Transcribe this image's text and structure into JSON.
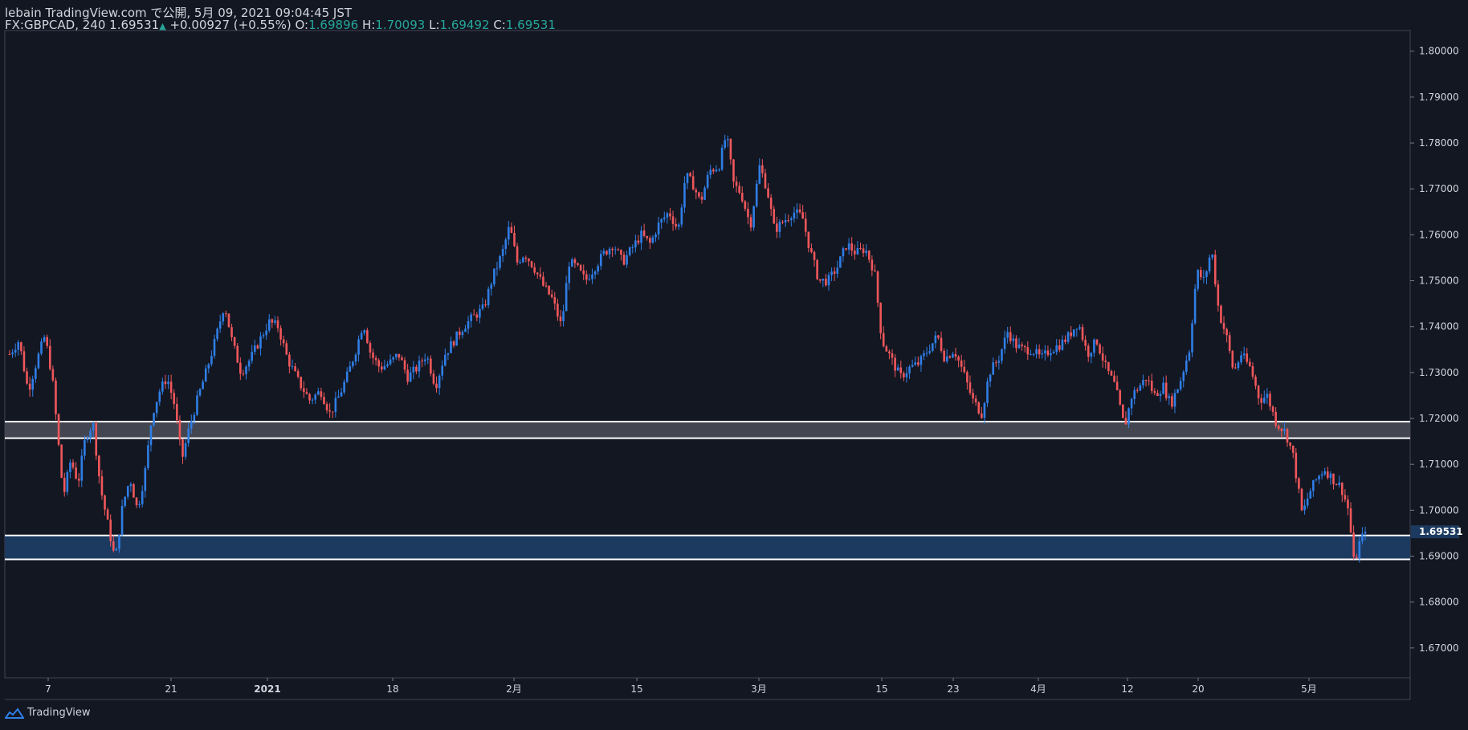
{
  "header": {
    "line1": "lebain TradingView.com で公開, 5月 09, 2021 09:04:45 JST",
    "symbol": "FX:GBPCAD, 240",
    "last": "1.69531",
    "change": "+0.00927 (+0.55%)",
    "o_label": "O:",
    "o": "1.69896",
    "h_label": "H:",
    "h": "1.70093",
    "l_label": "L:",
    "l": "1.69492",
    "c_label": "C:",
    "c": "1.69531"
  },
  "footer": {
    "brand": "TradingView"
  },
  "chart_data": {
    "type": "candlestick",
    "symbol": "FX:GBPCAD",
    "interval": "240",
    "y_ticks": [
      "1.80000",
      "1.79000",
      "1.78000",
      "1.77000",
      "1.76000",
      "1.75000",
      "1.74000",
      "1.73000",
      "1.72000",
      "1.71000",
      "1.70000",
      "1.69000",
      "1.68000",
      "1.67000"
    ],
    "ylim": [
      1.6635,
      1.8045
    ],
    "x_ticks": [
      "7",
      "21",
      "2021",
      "18",
      "2月",
      "15",
      "3月",
      "15",
      "23",
      "4月",
      "12",
      "20",
      "5月"
    ],
    "last_price_label": "1.69531",
    "zones": [
      {
        "from": 1.7157,
        "to": 1.7193,
        "fill": "#434651",
        "border": "#ffffff"
      },
      {
        "from": 1.6893,
        "to": 1.6945,
        "fill": "#1c3a60",
        "border": "#ffffff"
      }
    ],
    "up_color": "#2f7ee6",
    "down_color": "#f0575b",
    "grid": false,
    "path": [
      [
        0,
        1.734
      ],
      [
        10,
        1.737
      ],
      [
        20,
        1.726
      ],
      [
        30,
        1.733
      ],
      [
        38,
        1.738
      ],
      [
        46,
        1.729
      ],
      [
        58,
        1.703
      ],
      [
        66,
        1.711
      ],
      [
        74,
        1.706
      ],
      [
        82,
        1.716
      ],
      [
        90,
        1.719
      ],
      [
        98,
        1.705
      ],
      [
        106,
        1.697
      ],
      [
        114,
        1.689
      ],
      [
        122,
        1.701
      ],
      [
        130,
        1.707
      ],
      [
        138,
        1.7
      ],
      [
        146,
        1.708
      ],
      [
        154,
        1.721
      ],
      [
        162,
        1.726
      ],
      [
        170,
        1.729
      ],
      [
        178,
        1.723
      ],
      [
        186,
        1.711
      ],
      [
        194,
        1.718
      ],
      [
        204,
        1.725
      ],
      [
        212,
        1.73
      ],
      [
        222,
        1.737
      ],
      [
        232,
        1.745
      ],
      [
        240,
        1.737
      ],
      [
        250,
        1.73
      ],
      [
        260,
        1.733
      ],
      [
        270,
        1.737
      ],
      [
        280,
        1.741
      ],
      [
        290,
        1.74
      ],
      [
        300,
        1.733
      ],
      [
        312,
        1.728
      ],
      [
        324,
        1.724
      ],
      [
        336,
        1.726
      ],
      [
        346,
        1.721
      ],
      [
        356,
        1.725
      ],
      [
        366,
        1.73
      ],
      [
        374,
        1.735
      ],
      [
        382,
        1.741
      ],
      [
        390,
        1.734
      ],
      [
        400,
        1.731
      ],
      [
        410,
        1.732
      ],
      [
        420,
        1.734
      ],
      [
        430,
        1.729
      ],
      [
        440,
        1.731
      ],
      [
        450,
        1.734
      ],
      [
        460,
        1.727
      ],
      [
        470,
        1.734
      ],
      [
        480,
        1.737
      ],
      [
        490,
        1.74
      ],
      [
        500,
        1.742
      ],
      [
        512,
        1.744
      ],
      [
        522,
        1.751
      ],
      [
        532,
        1.756
      ],
      [
        540,
        1.762
      ],
      [
        548,
        1.754
      ],
      [
        556,
        1.756
      ],
      [
        566,
        1.753
      ],
      [
        576,
        1.749
      ],
      [
        586,
        1.746
      ],
      [
        596,
        1.74
      ],
      [
        604,
        1.754
      ],
      [
        612,
        1.753
      ],
      [
        622,
        1.75
      ],
      [
        632,
        1.753
      ],
      [
        642,
        1.756
      ],
      [
        652,
        1.758
      ],
      [
        662,
        1.754
      ],
      [
        672,
        1.757
      ],
      [
        682,
        1.76
      ],
      [
        692,
        1.758
      ],
      [
        700,
        1.762
      ],
      [
        712,
        1.765
      ],
      [
        722,
        1.761
      ],
      [
        730,
        1.773
      ],
      [
        738,
        1.771
      ],
      [
        746,
        1.767
      ],
      [
        756,
        1.774
      ],
      [
        766,
        1.775
      ],
      [
        774,
        1.782
      ],
      [
        782,
        1.771
      ],
      [
        790,
        1.769
      ],
      [
        800,
        1.762
      ],
      [
        810,
        1.775
      ],
      [
        818,
        1.77
      ],
      [
        826,
        1.761
      ],
      [
        836,
        1.763
      ],
      [
        846,
        1.765
      ],
      [
        856,
        1.764
      ],
      [
        864,
        1.757
      ],
      [
        874,
        1.75
      ],
      [
        884,
        1.75
      ],
      [
        894,
        1.753
      ],
      [
        904,
        1.758
      ],
      [
        914,
        1.756
      ],
      [
        924,
        1.757
      ],
      [
        934,
        1.752
      ],
      [
        942,
        1.737
      ],
      [
        952,
        1.733
      ],
      [
        962,
        1.729
      ],
      [
        972,
        1.731
      ],
      [
        982,
        1.732
      ],
      [
        992,
        1.735
      ],
      [
        1002,
        1.738
      ],
      [
        1010,
        1.733
      ],
      [
        1020,
        1.735
      ],
      [
        1030,
        1.73
      ],
      [
        1040,
        1.724
      ],
      [
        1050,
        1.721
      ],
      [
        1058,
        1.73
      ],
      [
        1068,
        1.733
      ],
      [
        1078,
        1.739
      ],
      [
        1086,
        1.736
      ],
      [
        1094,
        1.735
      ],
      [
        1104,
        1.735
      ],
      [
        1114,
        1.733
      ],
      [
        1124,
        1.735
      ],
      [
        1134,
        1.736
      ],
      [
        1144,
        1.738
      ],
      [
        1154,
        1.741
      ],
      [
        1164,
        1.734
      ],
      [
        1174,
        1.737
      ],
      [
        1184,
        1.731
      ],
      [
        1194,
        1.727
      ],
      [
        1204,
        1.718
      ],
      [
        1212,
        1.725
      ],
      [
        1220,
        1.727
      ],
      [
        1228,
        1.729
      ],
      [
        1236,
        1.725
      ],
      [
        1246,
        1.727
      ],
      [
        1254,
        1.723
      ],
      [
        1264,
        1.728
      ],
      [
        1274,
        1.735
      ],
      [
        1282,
        1.752
      ],
      [
        1290,
        1.75
      ],
      [
        1298,
        1.757
      ],
      [
        1306,
        1.743
      ],
      [
        1314,
        1.738
      ],
      [
        1322,
        1.73
      ],
      [
        1330,
        1.734
      ],
      [
        1340,
        1.731
      ],
      [
        1350,
        1.724
      ],
      [
        1358,
        1.725
      ],
      [
        1368,
        1.719
      ],
      [
        1378,
        1.717
      ],
      [
        1386,
        1.712
      ],
      [
        1396,
        1.699
      ],
      [
        1404,
        1.704
      ],
      [
        1412,
        1.707
      ],
      [
        1420,
        1.709
      ],
      [
        1428,
        1.707
      ],
      [
        1438,
        1.705
      ],
      [
        1446,
        1.7
      ],
      [
        1452,
        1.688
      ],
      [
        1458,
        1.693
      ],
      [
        1464,
        1.6953
      ]
    ]
  }
}
